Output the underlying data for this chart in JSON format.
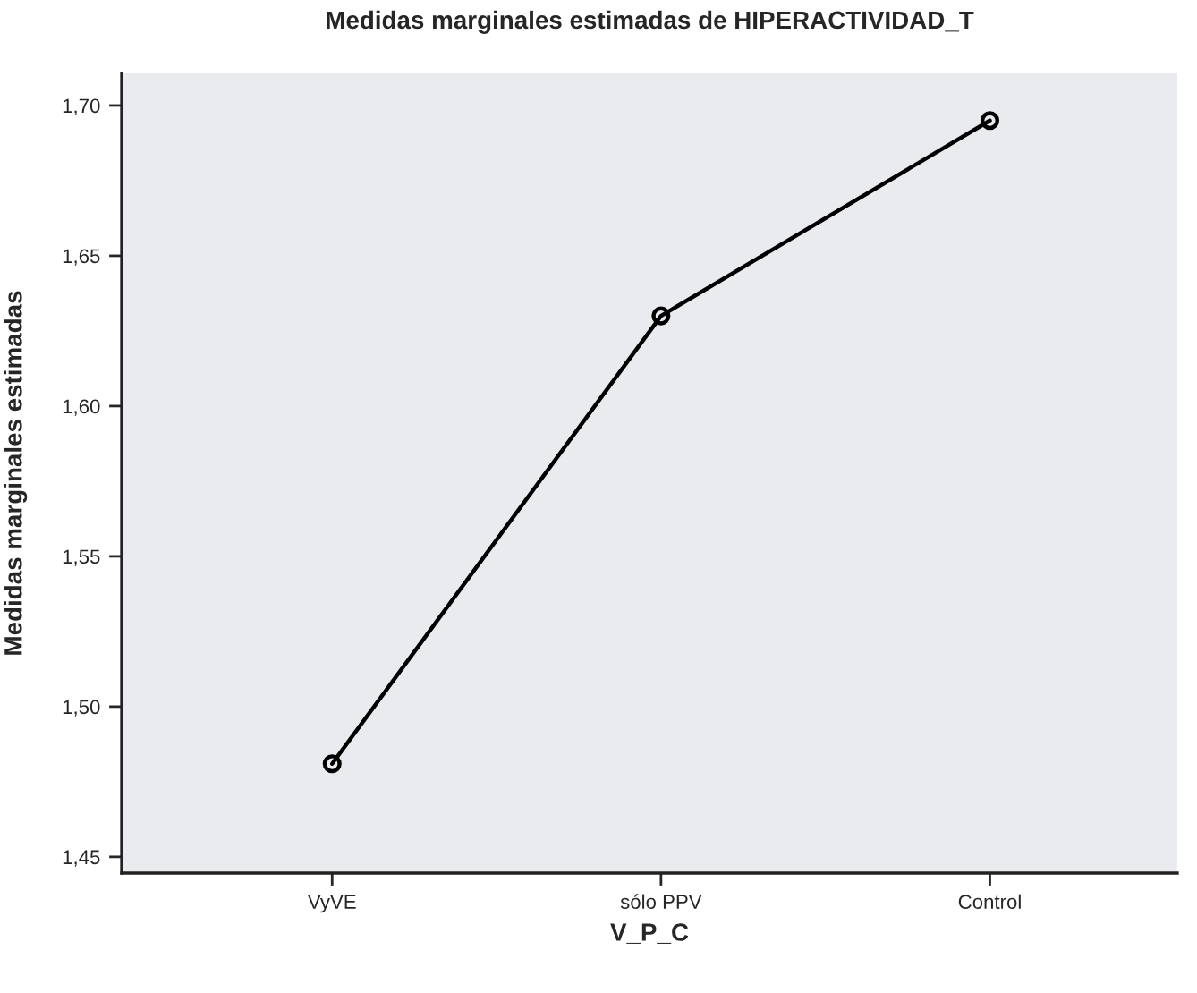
{
  "chart_data": {
    "type": "line",
    "title": "Medidas marginales estimadas de HIPERACTIVIDAD_T",
    "xlabel": "V_P_C",
    "ylabel": "Medidas marginales estimadas",
    "categories": [
      "VyVE",
      "sólo PPV",
      "Control"
    ],
    "series": [
      {
        "color": "#000000",
        "values": [
          1.481,
          1.63,
          1.695
        ]
      }
    ],
    "ylim": [
      1.4446,
      1.7107
    ],
    "yticks": [
      {
        "value": 1.45,
        "label": "1,45"
      },
      {
        "value": 1.5,
        "label": "1,50"
      },
      {
        "value": 1.55,
        "label": "1,55"
      },
      {
        "value": 1.6,
        "label": "1,60"
      },
      {
        "value": 1.65,
        "label": "1,65"
      },
      {
        "value": 1.7,
        "label": "1,70"
      }
    ],
    "grid": false,
    "legend": false,
    "marker": "circle",
    "line_style": "solid"
  }
}
